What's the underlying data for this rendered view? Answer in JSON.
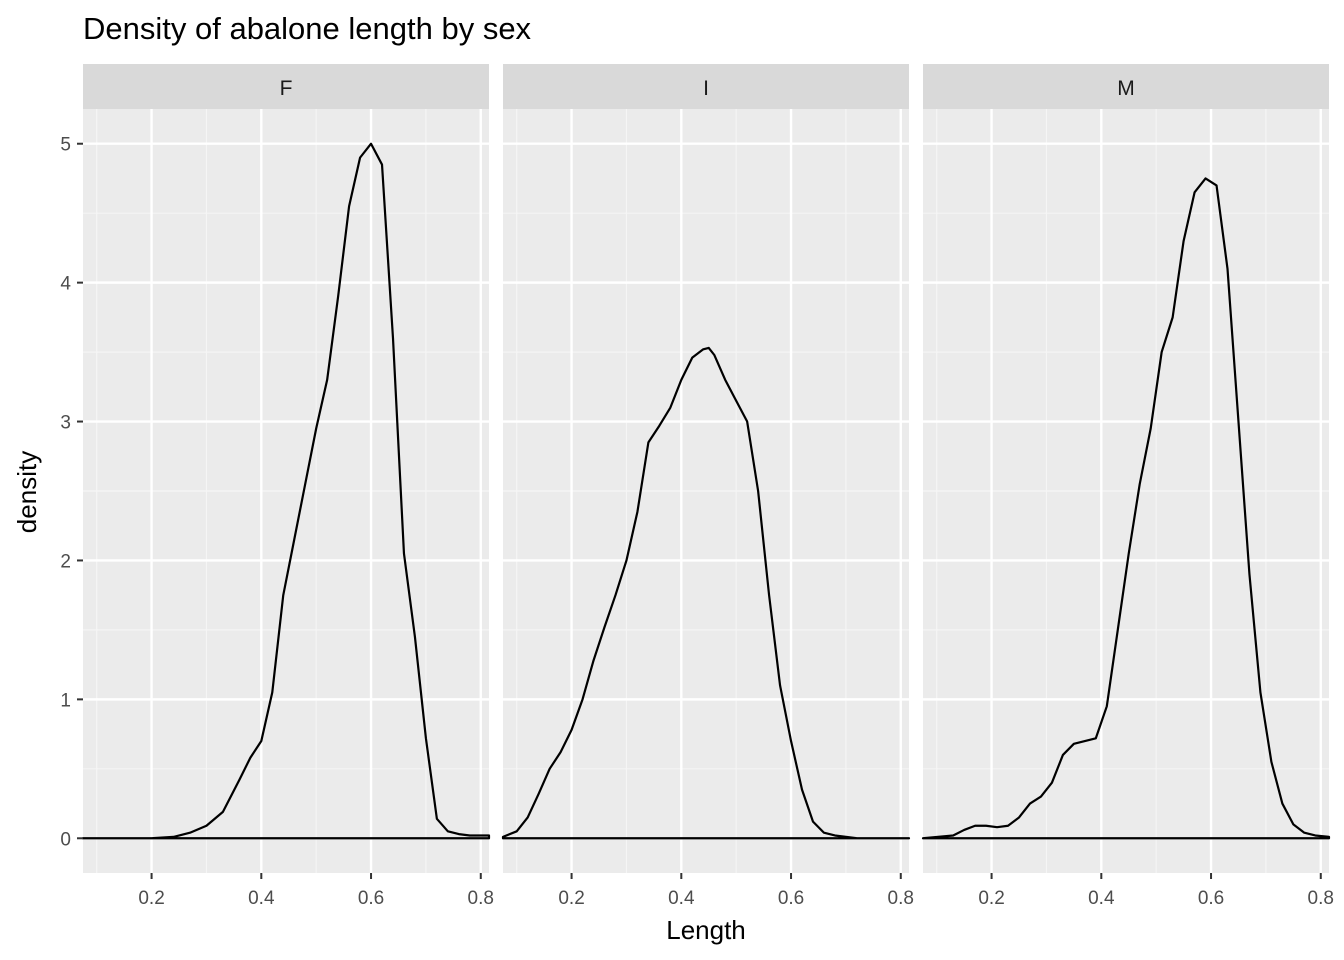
{
  "chart_data": {
    "type": "line",
    "title": "Density of abalone length by sex",
    "xlabel": "Length",
    "ylabel": "density",
    "xlim": [
      0.075,
      0.815
    ],
    "ylim": [
      -0.25,
      5.25
    ],
    "x_ticks": [
      "0.2",
      "0.4",
      "0.6",
      "0.8"
    ],
    "x_tick_values": [
      0.2,
      0.4,
      0.6,
      0.8
    ],
    "y_ticks": [
      "0",
      "1",
      "2",
      "3",
      "4",
      "5"
    ],
    "y_tick_values": [
      0,
      1,
      2,
      3,
      4,
      5
    ],
    "grid": true,
    "legend": "none",
    "facets": [
      {
        "strip": "F",
        "x": [
          0.075,
          0.15,
          0.2,
          0.24,
          0.27,
          0.3,
          0.33,
          0.36,
          0.38,
          0.4,
          0.42,
          0.44,
          0.46,
          0.48,
          0.5,
          0.52,
          0.54,
          0.56,
          0.58,
          0.6,
          0.62,
          0.64,
          0.66,
          0.68,
          0.7,
          0.72,
          0.74,
          0.76,
          0.78,
          0.8,
          0.815
        ],
        "y": [
          0,
          0,
          0,
          0.01,
          0.04,
          0.09,
          0.19,
          0.42,
          0.58,
          0.7,
          1.05,
          1.75,
          2.15,
          2.55,
          2.95,
          3.3,
          3.9,
          4.55,
          4.9,
          5.0,
          4.85,
          3.6,
          2.05,
          1.45,
          0.72,
          0.14,
          0.05,
          0.03,
          0.02,
          0.02,
          0.02
        ]
      },
      {
        "strip": "I",
        "x": [
          0.075,
          0.1,
          0.12,
          0.14,
          0.16,
          0.18,
          0.2,
          0.22,
          0.24,
          0.26,
          0.28,
          0.3,
          0.32,
          0.34,
          0.36,
          0.38,
          0.4,
          0.42,
          0.44,
          0.45,
          0.46,
          0.48,
          0.5,
          0.52,
          0.54,
          0.56,
          0.58,
          0.6,
          0.62,
          0.64,
          0.66,
          0.68,
          0.7,
          0.72,
          0.75,
          0.815
        ],
        "y": [
          0.01,
          0.05,
          0.15,
          0.32,
          0.5,
          0.62,
          0.78,
          1.0,
          1.28,
          1.52,
          1.75,
          2.0,
          2.35,
          2.85,
          2.97,
          3.1,
          3.3,
          3.46,
          3.52,
          3.53,
          3.48,
          3.3,
          3.15,
          3.0,
          2.5,
          1.75,
          1.1,
          0.7,
          0.35,
          0.12,
          0.04,
          0.02,
          0.01,
          0.0,
          0.0,
          0.0
        ]
      },
      {
        "strip": "M",
        "x": [
          0.075,
          0.13,
          0.15,
          0.17,
          0.19,
          0.21,
          0.23,
          0.25,
          0.27,
          0.29,
          0.31,
          0.33,
          0.35,
          0.37,
          0.39,
          0.41,
          0.43,
          0.45,
          0.47,
          0.49,
          0.51,
          0.53,
          0.55,
          0.57,
          0.59,
          0.61,
          0.63,
          0.65,
          0.67,
          0.69,
          0.71,
          0.73,
          0.75,
          0.77,
          0.79,
          0.815
        ],
        "y": [
          0,
          0.02,
          0.06,
          0.09,
          0.09,
          0.08,
          0.09,
          0.15,
          0.25,
          0.3,
          0.4,
          0.6,
          0.68,
          0.7,
          0.72,
          0.95,
          1.5,
          2.05,
          2.55,
          2.95,
          3.5,
          3.75,
          4.3,
          4.65,
          4.75,
          4.7,
          4.1,
          3.0,
          1.9,
          1.05,
          0.55,
          0.25,
          0.1,
          0.04,
          0.02,
          0.01
        ]
      }
    ]
  }
}
